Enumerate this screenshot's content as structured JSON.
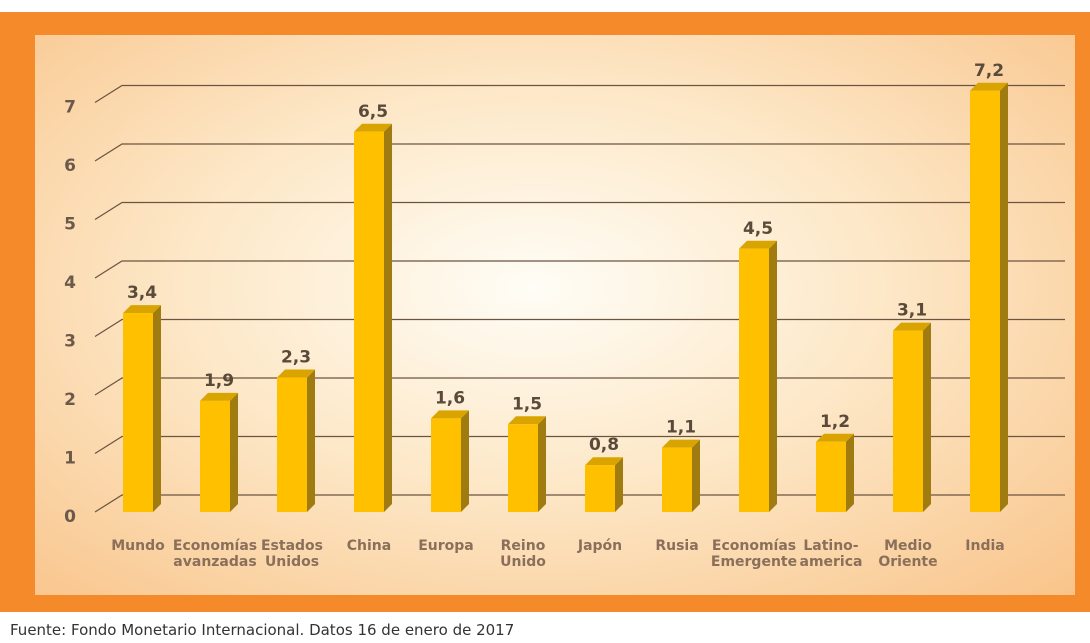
{
  "chart_data": {
    "type": "bar",
    "categories": [
      "Mundo",
      "Economías\navanzadas",
      "Estados\nUnidos",
      "China",
      "Europa",
      "Reino\nUnido",
      "Japón",
      "Rusia",
      "Economías\nEmergente",
      "Latino-\namerica",
      "Medio\nOriente",
      "India"
    ],
    "values": [
      3.4,
      1.9,
      2.3,
      6.5,
      1.6,
      1.5,
      0.8,
      1.1,
      4.5,
      1.2,
      3.1,
      7.2
    ],
    "value_labels": [
      "3,4",
      "1,9",
      "2,3",
      "6,5",
      "1,6",
      "1,5",
      "0,8",
      "1,1",
      "4,5",
      "1,2",
      "3,1",
      "7,2"
    ],
    "color": "#ffc000",
    "ylim": [
      0,
      7.6
    ],
    "yticks": [
      0,
      1,
      2,
      3,
      4,
      5,
      6,
      7
    ],
    "grid": true,
    "source": "Fuente: Fondo Monetario Internacional. Datos 16 de enero de 2017"
  }
}
